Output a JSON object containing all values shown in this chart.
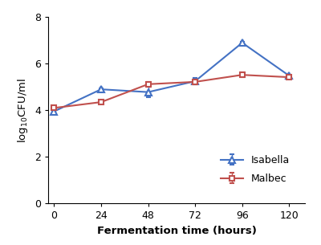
{
  "x": [
    0,
    24,
    48,
    72,
    96,
    120
  ],
  "isabella_y": [
    3.95,
    4.9,
    4.78,
    5.25,
    6.9,
    5.48
  ],
  "isabella_yerr": [
    0.04,
    0.04,
    0.22,
    0.15,
    0.04,
    0.04
  ],
  "malbec_y": [
    4.1,
    4.35,
    5.12,
    5.22,
    5.52,
    5.42
  ],
  "malbec_yerr": [
    0.04,
    0.04,
    0.1,
    0.1,
    0.1,
    0.04
  ],
  "isabella_color": "#4472C4",
  "malbec_color": "#C0504D",
  "xlabel": "Fermentation time (hours)",
  "ylabel": "log$_{10}$CFU/ml",
  "xlim": [
    -3,
    128
  ],
  "ylim": [
    0,
    8
  ],
  "yticks": [
    0,
    2,
    4,
    6,
    8
  ],
  "xticks": [
    0,
    24,
    48,
    72,
    96,
    120
  ],
  "legend_isabella": "Isabella",
  "legend_malbec": "Malbec"
}
